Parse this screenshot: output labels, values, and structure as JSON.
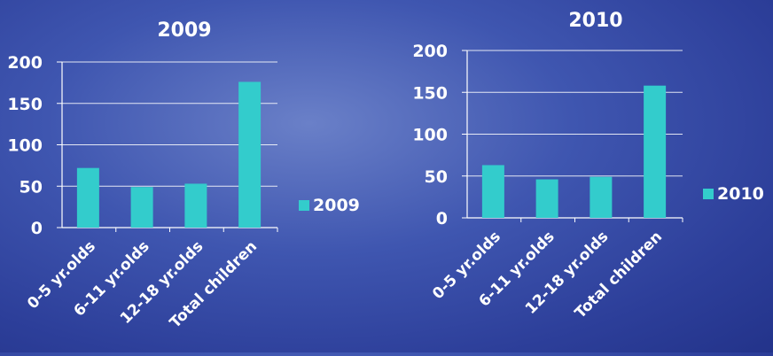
{
  "chart_data": [
    {
      "type": "bar",
      "title": "2009",
      "categories": [
        "0-5 yr.olds",
        "6-11 yr.olds",
        "12-18 yr.olds",
        "Total children"
      ],
      "series": [
        {
          "name": "2009",
          "values": [
            72,
            49,
            53,
            176
          ]
        }
      ],
      "ylim": [
        0,
        200
      ],
      "yticks": [
        "0",
        "50",
        "100",
        "150",
        "200"
      ],
      "grid": true,
      "legend": "right",
      "bar_color": "#33cccc"
    },
    {
      "type": "bar",
      "title": "2010",
      "categories": [
        "0-5 yr.olds",
        "6-11 yr.olds",
        "12-18 yr.olds",
        "Total children"
      ],
      "series": [
        {
          "name": "2010",
          "values": [
            63,
            46,
            49,
            158
          ]
        }
      ],
      "ylim": [
        0,
        200
      ],
      "yticks": [
        "0",
        "50",
        "100",
        "150",
        "200"
      ],
      "grid": true,
      "legend": "right",
      "bar_color": "#33cccc"
    }
  ]
}
